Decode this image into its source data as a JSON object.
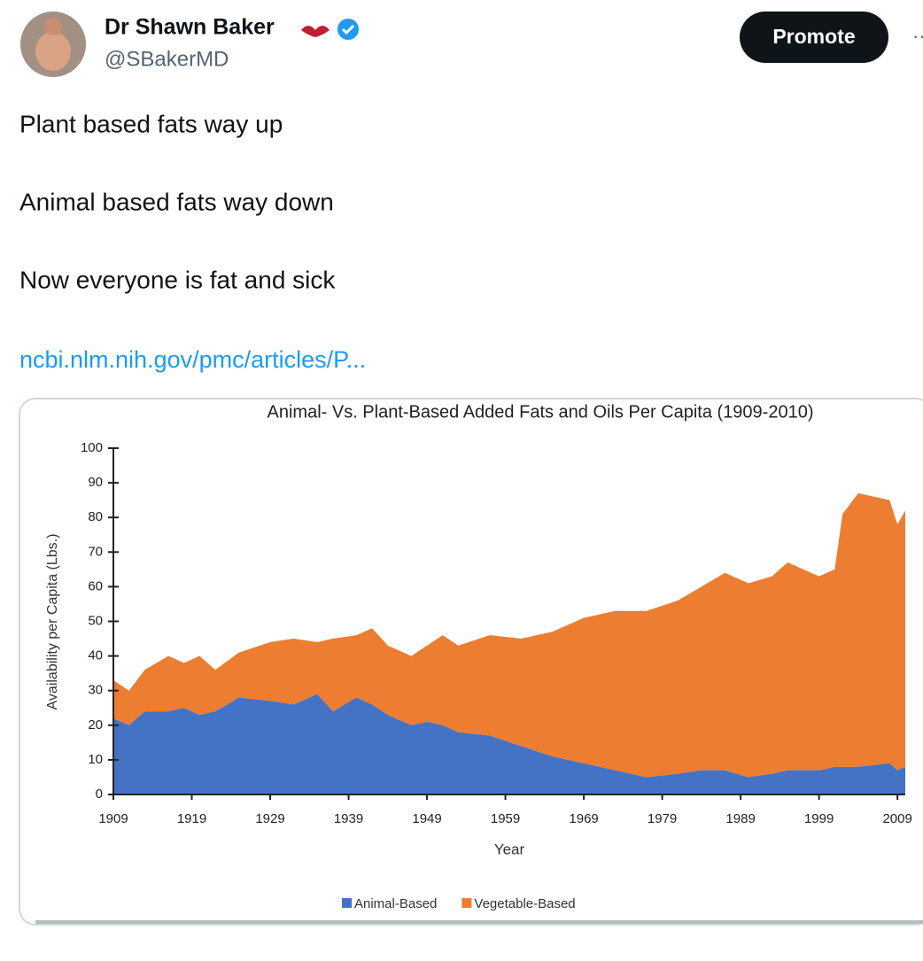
{
  "tweet": {
    "name": "Dr Shawn Baker",
    "handle": "@SBakerMD",
    "button": "Promote",
    "lines": [
      "Plant based fats way up",
      "Animal based fats way down",
      "Now everyone is fat and sick"
    ],
    "link": "ncbi.nlm.nih.gov/pmc/articles/P..."
  },
  "chart_data": {
    "type": "area",
    "stacked": true,
    "title": "Animal- Vs. Plant-Based Added Fats and Oils Per Capita (1909-2010)",
    "x_label": "Year",
    "y_label": "Availability per Capita (Lbs.)",
    "x": [
      1909,
      1911,
      1913,
      1916,
      1918,
      1920,
      1922,
      1925,
      1929,
      1932,
      1935,
      1937,
      1940,
      1942,
      1944,
      1947,
      1949,
      1951,
      1953,
      1957,
      1961,
      1965,
      1969,
      1973,
      1977,
      1981,
      1984,
      1987,
      1990,
      1993,
      1995,
      1999,
      2001,
      2002,
      2004,
      2008,
      2009,
      2010
    ],
    "series": [
      {
        "name": "Animal-Based",
        "color": "#4472c4",
        "values": [
          22,
          20,
          24,
          24,
          25,
          23,
          24,
          28,
          27,
          26,
          29,
          24,
          28,
          26,
          23,
          20,
          21,
          20,
          18,
          17,
          14,
          11,
          9,
          7,
          5,
          6,
          7,
          7,
          5,
          6,
          7,
          7,
          8,
          8,
          8,
          9,
          7,
          8
        ]
      },
      {
        "name": "Vegetable-Based",
        "color": "#ed7d31",
        "values": [
          11,
          10,
          12,
          16,
          13,
          17,
          12,
          13,
          17,
          19,
          15,
          21,
          18,
          22,
          20,
          20,
          22,
          26,
          25,
          29,
          31,
          36,
          42,
          46,
          48,
          50,
          53,
          57,
          56,
          57,
          60,
          56,
          57,
          73,
          79,
          76,
          71,
          74
        ]
      }
    ],
    "xlim": [
      1909,
      2010
    ],
    "xticks": [
      1909,
      1919,
      1929,
      1939,
      1949,
      1959,
      1969,
      1979,
      1989,
      1999,
      2009
    ],
    "ylim": [
      0,
      100
    ],
    "yticks": [
      0,
      10,
      20,
      30,
      40,
      50,
      60,
      70,
      80,
      90,
      100
    ],
    "legend": "bottom"
  }
}
